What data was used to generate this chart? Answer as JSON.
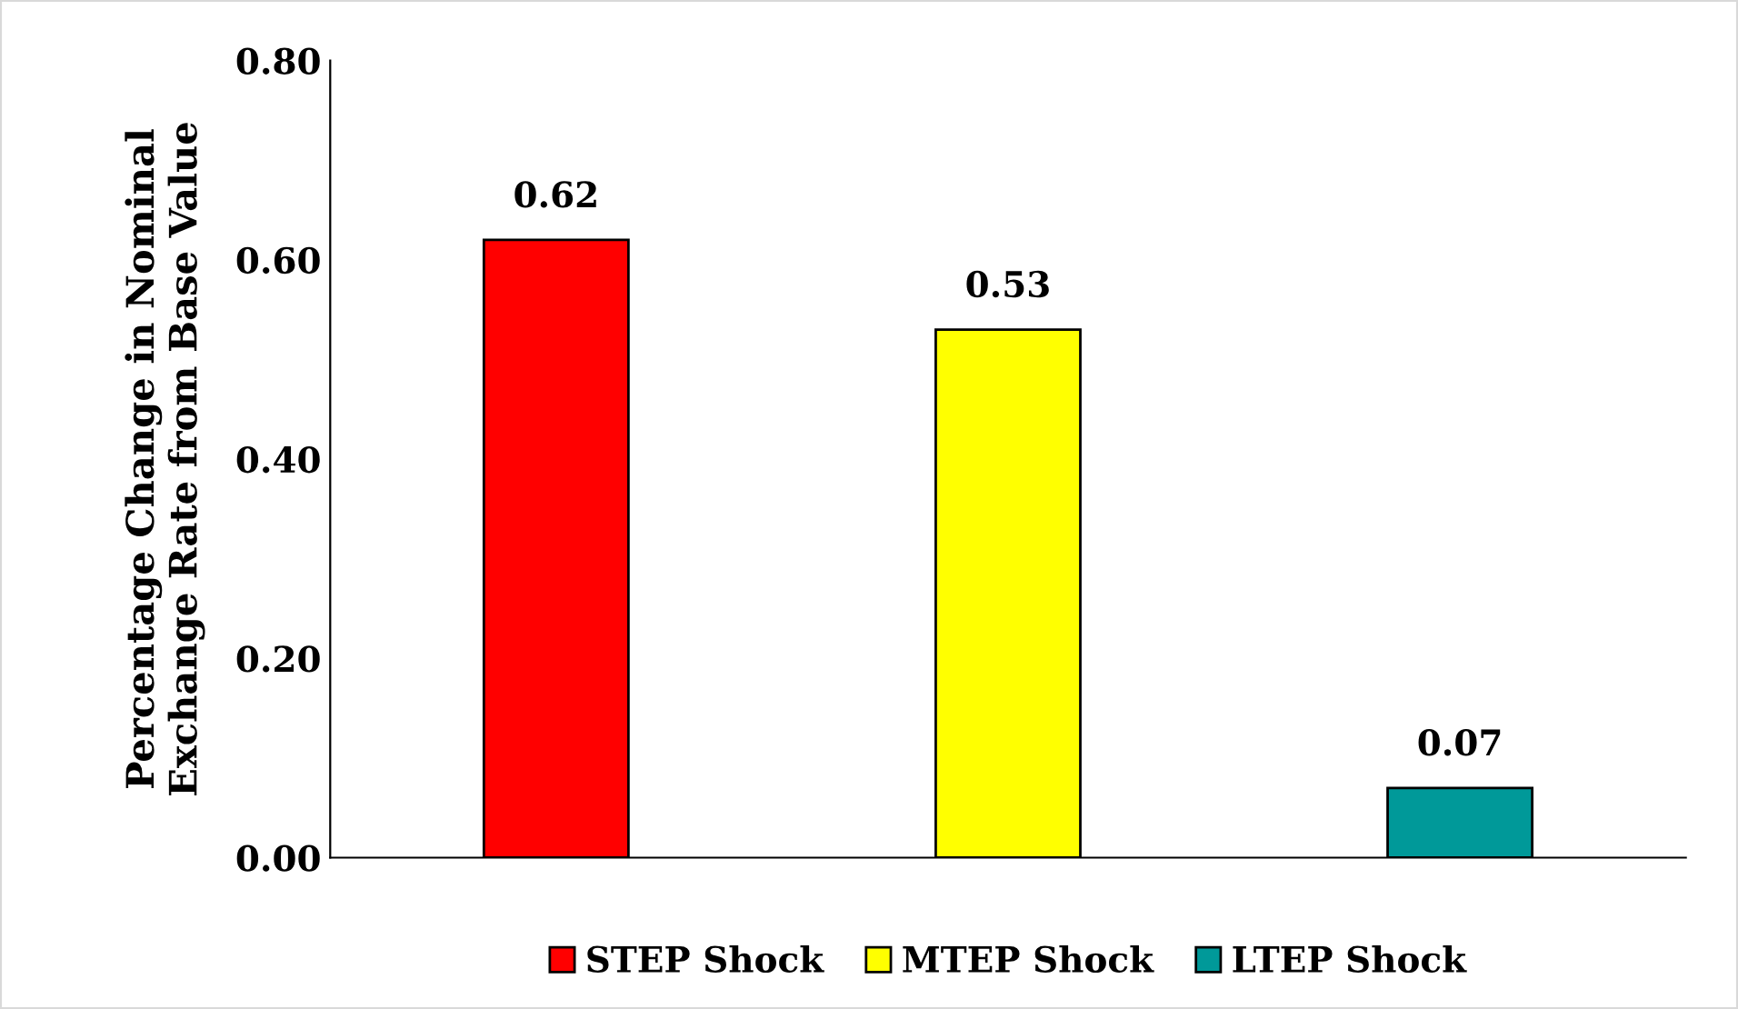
{
  "chart_data": {
    "type": "bar",
    "ylabel": "Percentage Change in Nominal\nExchange Rate from Base Value",
    "categories": [
      null,
      null,
      null
    ],
    "series": [
      {
        "name": "STEP Shock",
        "color": "#ff0000",
        "values": [
          0.62,
          null,
          null
        ]
      },
      {
        "name": "MTEP Shock",
        "color": "#ffff00",
        "values": [
          null,
          0.53,
          null
        ]
      },
      {
        "name": "LTEP Shock",
        "color": "#009999",
        "values": [
          null,
          null,
          0.07
        ]
      }
    ],
    "ylim": [
      0,
      0.8
    ],
    "yticks": [
      {
        "value": 0,
        "label": "0.00"
      },
      {
        "value": 0.2,
        "label": "0.20"
      },
      {
        "value": 0.4,
        "label": "0.40"
      },
      {
        "value": 0.6,
        "label": "0.60"
      },
      {
        "value": 0.8,
        "label": "0.80"
      }
    ],
    "data_labels": true,
    "legend": "bottom",
    "grid": false
  }
}
